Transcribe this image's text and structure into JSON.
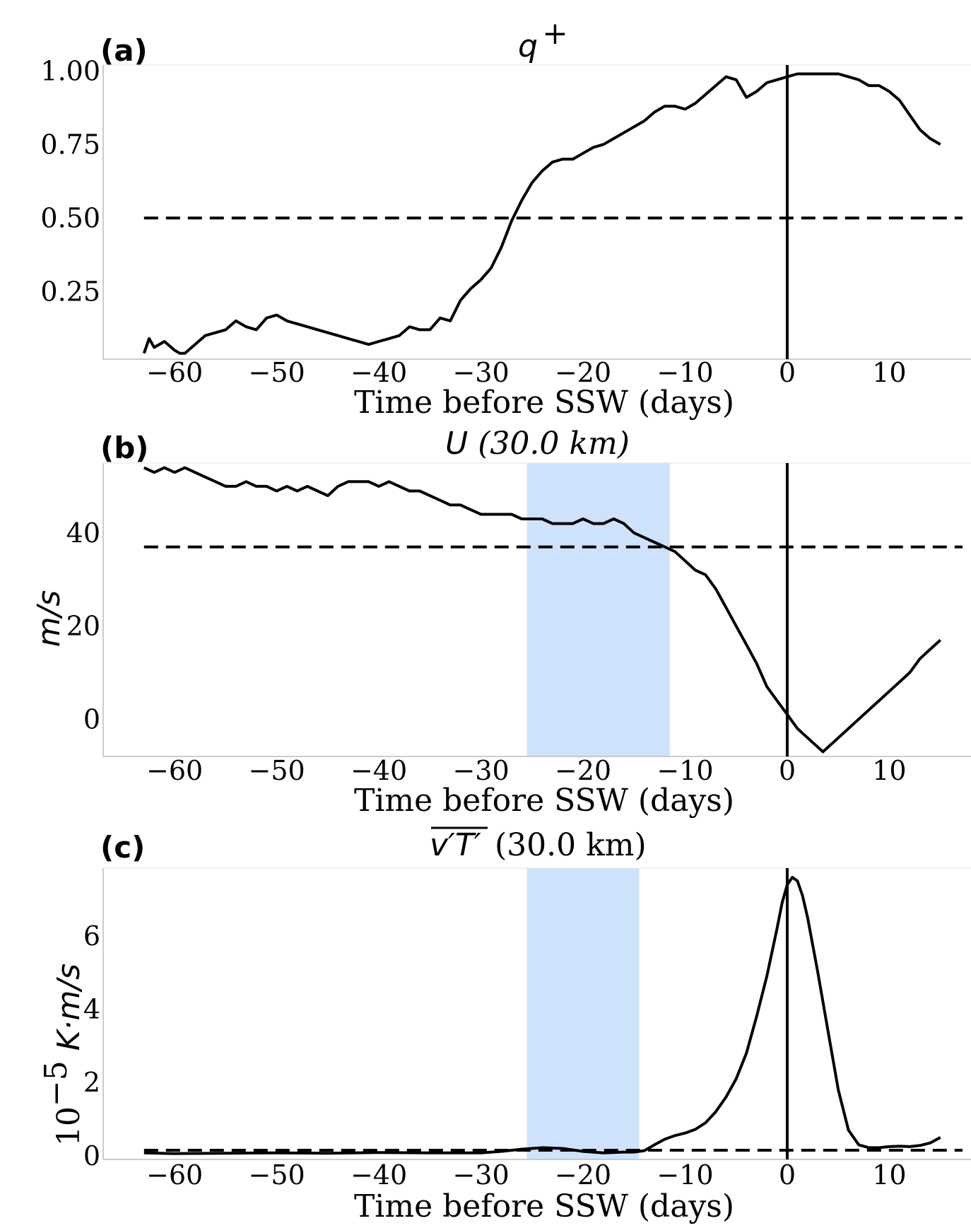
{
  "colors": {
    "line": "#000000",
    "shade": "#cfe2fb",
    "axis": "#bbbbbb"
  },
  "chart_data": [
    {
      "panel": "(a)",
      "type": "line",
      "title": "q⁺",
      "title_parts": [
        "q",
        "+"
      ],
      "xlabel": "Time before SSW (days)",
      "ylabel": "",
      "xlim": [
        -67,
        18
      ],
      "ylim": [
        0.02,
        1.02
      ],
      "xticks": [
        -60,
        -50,
        -40,
        -30,
        -20,
        -10,
        0,
        10
      ],
      "yticks": [
        0.25,
        0.5,
        0.75,
        1.0
      ],
      "ytick_labels": [
        "0.25",
        "0.50",
        "0.75",
        "1.00"
      ],
      "hline": 0.5,
      "vline": 0,
      "shade": null,
      "series": [
        {
          "x": [
            -63,
            -62.5,
            -62,
            -61,
            -60,
            -59.5,
            -59,
            -58,
            -57,
            -56,
            -55,
            -54,
            -53,
            -52,
            -51,
            -50,
            -49,
            -48,
            -47,
            -46,
            -45,
            -44,
            -43,
            -42,
            -41,
            -40,
            -39,
            -38,
            -37,
            -36,
            -35,
            -34,
            -33,
            -32,
            -31,
            -30,
            -29,
            -28,
            -27,
            -26,
            -25.5,
            -25,
            -24,
            -23,
            -22,
            -21,
            -20,
            -19,
            -18,
            -17,
            -16,
            -15,
            -14,
            -13,
            -12,
            -11,
            -10,
            -9,
            -8,
            -7,
            -6,
            -5,
            -4,
            -3,
            -2,
            -1,
            0,
            1,
            2,
            3,
            4,
            5,
            6,
            7,
            8,
            9,
            10,
            11,
            12,
            13,
            14,
            15
          ],
          "y": [
            0.04,
            0.09,
            0.06,
            0.08,
            0.05,
            0.04,
            0.04,
            0.07,
            0.1,
            0.11,
            0.12,
            0.15,
            0.13,
            0.12,
            0.16,
            0.17,
            0.15,
            0.14,
            0.13,
            0.12,
            0.11,
            0.1,
            0.09,
            0.08,
            0.07,
            0.08,
            0.09,
            0.1,
            0.13,
            0.12,
            0.12,
            0.16,
            0.15,
            0.22,
            0.26,
            0.29,
            0.33,
            0.4,
            0.49,
            0.56,
            0.59,
            0.62,
            0.66,
            0.69,
            0.7,
            0.7,
            0.72,
            0.74,
            0.75,
            0.77,
            0.79,
            0.81,
            0.83,
            0.86,
            0.88,
            0.88,
            0.87,
            0.89,
            0.92,
            0.95,
            0.98,
            0.97,
            0.91,
            0.93,
            0.96,
            0.97,
            0.98,
            0.99,
            0.99,
            0.99,
            0.99,
            0.99,
            0.98,
            0.97,
            0.95,
            0.95,
            0.93,
            0.9,
            0.85,
            0.8,
            0.77,
            0.75
          ]
        }
      ]
    },
    {
      "panel": "(b)",
      "type": "line",
      "title": "U (30.0 km)",
      "title_parts": [
        "U",
        " (30.0 km)"
      ],
      "xlabel": "Time before SSW (days)",
      "ylabel": "m/s",
      "xlim": [
        -67,
        18
      ],
      "ylim": [
        -8,
        55
      ],
      "xticks": [
        -60,
        -50,
        -40,
        -30,
        -20,
        -10,
        0,
        10
      ],
      "yticks": [
        0,
        20,
        40
      ],
      "ytick_labels": [
        "0",
        "20",
        "40"
      ],
      "hline": 37,
      "vline": 0,
      "shade": [
        -25.5,
        -11.5
      ],
      "series": [
        {
          "x": [
            -63,
            -62,
            -61,
            -60,
            -59,
            -58,
            -57,
            -56,
            -55,
            -54,
            -53,
            -52,
            -51,
            -50,
            -49,
            -48,
            -47,
            -46,
            -45,
            -44,
            -43,
            -42,
            -41,
            -40,
            -39,
            -38,
            -37,
            -36,
            -35,
            -34,
            -33,
            -32,
            -31,
            -30,
            -29,
            -28,
            -27,
            -26,
            -25,
            -24,
            -23,
            -22,
            -21,
            -20,
            -19,
            -18,
            -17,
            -16,
            -15,
            -14,
            -13,
            -12,
            -11,
            -10,
            -9,
            -8,
            -7,
            -6,
            -5,
            -4,
            -3,
            -2,
            -1,
            0,
            1,
            2,
            3,
            3.5,
            4,
            5,
            6,
            7,
            8,
            9,
            10,
            11,
            12,
            13,
            14,
            15
          ],
          "y": [
            54,
            53,
            54,
            53,
            54,
            53,
            52,
            51,
            50,
            50,
            51,
            50,
            50,
            49,
            50,
            49,
            50,
            49,
            48,
            50,
            51,
            51,
            51,
            50,
            51,
            50,
            49,
            49,
            48,
            47,
            46,
            46,
            45,
            44,
            44,
            44,
            44,
            43,
            43,
            43,
            42,
            42,
            42,
            43,
            42,
            42,
            43,
            42,
            40,
            39,
            38,
            37,
            36,
            34,
            32,
            31,
            28,
            24,
            20,
            16,
            12,
            7,
            4,
            1,
            -2,
            -4,
            -6,
            -7,
            -6,
            -4,
            -2,
            0,
            2,
            4,
            6,
            8,
            10,
            13,
            15,
            17
          ]
        }
      ]
    },
    {
      "panel": "(c)",
      "type": "line",
      "title": "v′T′ (30.0 km)",
      "title_parts": [
        "v′T′",
        " (30.0 km)"
      ],
      "xlabel": "Time before SSW (days)",
      "ylabel": "10⁻⁵ K·m/s",
      "ylabel_parts": [
        "10",
        "−5",
        "K·m/s"
      ],
      "xlim": [
        -67,
        18
      ],
      "ylim": [
        -0.1,
        7.85
      ],
      "xticks": [
        -60,
        -50,
        -40,
        -30,
        -20,
        -10,
        0,
        10
      ],
      "yticks": [
        0,
        2,
        4,
        6
      ],
      "ytick_labels": [
        "0",
        "2",
        "4",
        "6"
      ],
      "hline": 0.15,
      "vline": 0,
      "shade": [
        -25.5,
        -14.5
      ],
      "series": [
        {
          "x": [
            -63,
            -60,
            -55,
            -50,
            -45,
            -40,
            -35,
            -30,
            -28,
            -26,
            -24,
            -22,
            -20,
            -18,
            -16,
            -15,
            -14,
            -13,
            -12,
            -11,
            -10,
            -9,
            -8,
            -7,
            -6,
            -5,
            -4,
            -3,
            -2,
            -1,
            -0.5,
            0,
            0.5,
            1,
            1.5,
            2,
            3,
            4,
            5,
            6,
            7,
            8,
            9,
            10,
            11,
            12,
            13,
            14,
            15
          ],
          "y": [
            0.08,
            0.06,
            0.07,
            0.08,
            0.07,
            0.09,
            0.08,
            0.08,
            0.12,
            0.18,
            0.22,
            0.2,
            0.12,
            0.08,
            0.1,
            0.1,
            0.14,
            0.3,
            0.45,
            0.55,
            0.62,
            0.72,
            0.9,
            1.2,
            1.6,
            2.1,
            2.8,
            3.8,
            4.9,
            6.2,
            6.9,
            7.4,
            7.6,
            7.5,
            7.1,
            6.5,
            5.0,
            3.4,
            1.8,
            0.7,
            0.3,
            0.22,
            0.22,
            0.25,
            0.26,
            0.25,
            0.28,
            0.35,
            0.5
          ]
        }
      ]
    }
  ]
}
